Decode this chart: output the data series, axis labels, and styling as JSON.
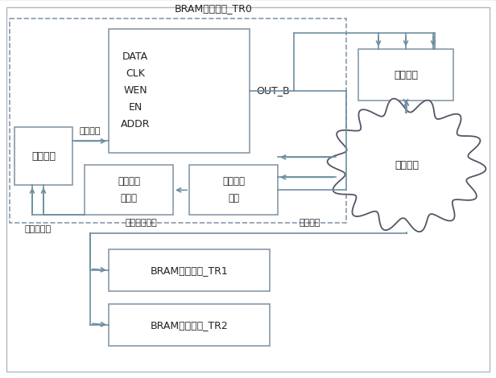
{
  "fig_w": 6.16,
  "fig_h": 4.7,
  "dpi": 100,
  "bg": "#f0f0f0",
  "box_fc": "#ffffff",
  "box_ec": "#8899aa",
  "dash_ec": "#8899aa",
  "arrow_c": "#6e8ea0",
  "text_c": "#222222",
  "fs": 8.5,
  "fs_small": 7.5,
  "lw": 1.2,
  "title": "BRAM及自刷新_TR0",
  "bram_label": "DATA\nCLK\nWEN\nEN\nADDR",
  "out_b": "OUT_B",
  "sfdfy_label": "时分复用",
  "dxzl_label": "读写控制",
  "sfxzk_label": "自刷新控\n制模块",
  "sfxzl_label": "自刷新支路",
  "sjjk_label": "算法监控\n模块",
  "smjc_label": "三模表决",
  "nbsf_label": "内部算法",
  "sfxzl2_label": "算法读写支路",
  "jkxx_label": "监控信息",
  "tr1_label": "BRAM及自刷新_TR1",
  "tr2_label": "BRAM及自刷新_TR2"
}
